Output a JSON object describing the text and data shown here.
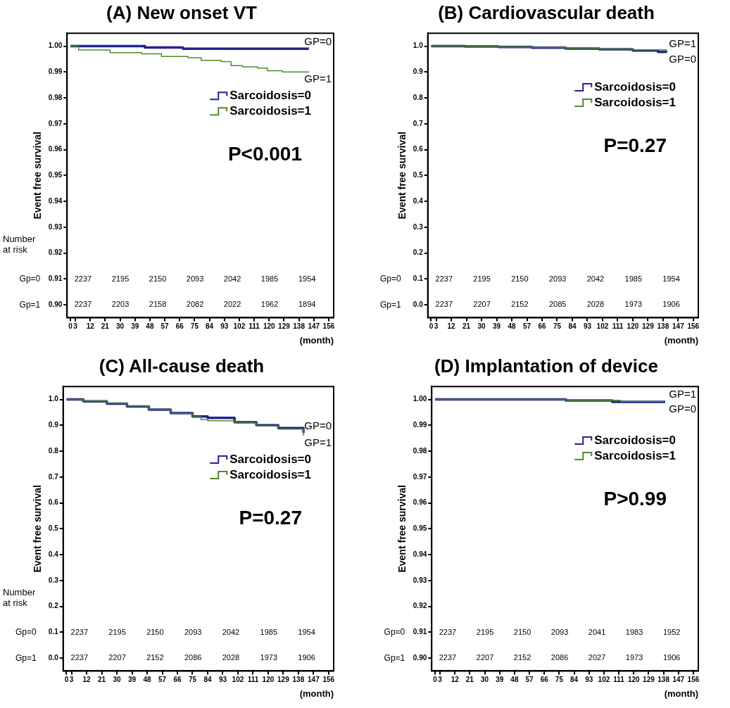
{
  "chart_data": [
    {
      "type": "step",
      "title": "(A) New onset VT",
      "xlabel": "(month)",
      "ylabel": "Event free survival",
      "legend": "top right",
      "xlim": [
        -2,
        159
      ],
      "xticks": [
        0,
        3,
        12,
        21,
        30,
        39,
        48,
        57,
        66,
        75,
        84,
        93,
        102,
        111,
        120,
        129,
        138,
        147,
        156
      ],
      "ylim": [
        0.895,
        1.005
      ],
      "yticks": [
        {
          "value": 0.9,
          "label": "0.90"
        },
        0.91,
        0.92,
        0.93,
        0.94,
        0.95,
        0.96,
        0.97,
        0.98,
        0.99,
        {
          "value": 1,
          "label": "1.00"
        }
      ],
      "series": [
        {
          "name": "Sarcoidosis=0",
          "color": "#23238f",
          "x": [
            0,
            45,
            68,
            144
          ],
          "values": [
            1.0,
            0.9995,
            0.999,
            0.999
          ]
        },
        {
          "name": "Sarcoidosis=1",
          "color": "#4a8c2a",
          "x": [
            0,
            5,
            24,
            43,
            55,
            71,
            79,
            91,
            97,
            104,
            113,
            119,
            128,
            144
          ],
          "values": [
            1.0,
            0.9985,
            0.9975,
            0.997,
            0.996,
            0.9955,
            0.9945,
            0.994,
            0.9925,
            0.992,
            0.9915,
            0.9905,
            0.99,
            0.99
          ]
        }
      ],
      "annotations": [
        "P<0.001",
        "GP=0",
        "GP=1",
        "Number at risk",
        "Gp=0",
        "Gp=1",
        "2237",
        "2195",
        "2150",
        "2093",
        "2042",
        "1985",
        "1954",
        "2237",
        "2203",
        "2158",
        "2082",
        "2022",
        "1962",
        "1894"
      ]
    },
    {
      "type": "step",
      "title": "(B) Cardiovascular death",
      "xlabel": "(month)",
      "ylabel": "Event free survival",
      "legend": "top right",
      "xlim": [
        -2,
        159
      ],
      "xticks": [
        0,
        3,
        12,
        21,
        30,
        39,
        48,
        57,
        66,
        75,
        84,
        93,
        102,
        111,
        120,
        129,
        138,
        147,
        156
      ],
      "ylim": [
        -0.05,
        1.05
      ],
      "yticks": [
        {
          "value": 0,
          "label": "0.0"
        },
        0.1,
        0.2,
        0.3,
        0.4,
        0.5,
        0.6,
        0.7,
        0.8,
        0.9,
        {
          "value": 1,
          "label": "1.0"
        }
      ],
      "series": [
        {
          "name": "Sarcoidosis=0",
          "color": "#23238f",
          "x": [
            0,
            20,
            40,
            60,
            80,
            100,
            120,
            135,
            140
          ],
          "values": [
            1.0,
            0.999,
            0.997,
            0.994,
            0.991,
            0.988,
            0.983,
            0.978,
            0.976
          ]
        },
        {
          "name": "Sarcoidosis=1",
          "color": "#4a8c2a",
          "x": [
            0,
            20,
            40,
            60,
            80,
            100,
            120,
            140
          ],
          "values": [
            1.0,
            0.999,
            0.997,
            0.995,
            0.992,
            0.989,
            0.986,
            0.982
          ]
        }
      ],
      "annotations": [
        "P=0.27",
        "GP=1",
        "GP=0",
        "Gp=0",
        "Gp=1",
        "2237",
        "2195",
        "2150",
        "2093",
        "2042",
        "1985",
        "1954",
        "2237",
        "2207",
        "2152",
        "2085",
        "2028",
        "1973",
        "1906"
      ]
    },
    {
      "type": "step",
      "title": "(C) All-cause death",
      "xlabel": "(month)",
      "ylabel": "Event free survival",
      "legend": "top right",
      "xlim": [
        -2,
        159
      ],
      "xticks": [
        0,
        3,
        12,
        21,
        30,
        39,
        48,
        57,
        66,
        75,
        84,
        93,
        102,
        111,
        120,
        129,
        138,
        147,
        156
      ],
      "ylim": [
        -0.05,
        1.05
      ],
      "yticks": [
        {
          "value": 0,
          "label": "0.0"
        },
        0.1,
        0.2,
        0.3,
        0.4,
        0.5,
        0.6,
        0.7,
        0.8,
        0.9,
        {
          "value": 1,
          "label": "1.0"
        }
      ],
      "series": [
        {
          "name": "Sarcoidosis=0",
          "color": "#23238f",
          "x": [
            0,
            10,
            24,
            36,
            49,
            62,
            75,
            84,
            100,
            113,
            126,
            141
          ],
          "values": [
            1.0,
            0.993,
            0.984,
            0.973,
            0.961,
            0.947,
            0.934,
            0.929,
            0.912,
            0.9,
            0.889,
            0.871
          ]
        },
        {
          "name": "Sarcoidosis=1",
          "color": "#4a8c2a",
          "x": [
            0,
            10,
            24,
            36,
            49,
            62,
            75,
            80,
            84,
            90,
            100,
            113,
            126,
            141
          ],
          "values": [
            1.0,
            0.994,
            0.986,
            0.975,
            0.962,
            0.946,
            0.932,
            0.922,
            0.918,
            0.917,
            0.91,
            0.898,
            0.885,
            0.86
          ]
        }
      ],
      "annotations": [
        "P=0.27",
        "GP=0",
        "GP=1",
        "Number at risk",
        "Gp=0",
        "Gp=1",
        "2237",
        "2195",
        "2150",
        "2093",
        "2042",
        "1985",
        "1954",
        "2237",
        "2207",
        "2152",
        "2086",
        "2028",
        "1973",
        "1906"
      ]
    },
    {
      "type": "step",
      "title": "(D) Implantation of device",
      "xlabel": "(month)",
      "ylabel": "Event free survival",
      "legend": "top right",
      "xlim": [
        -2,
        159
      ],
      "xticks": [
        0,
        3,
        12,
        21,
        30,
        39,
        48,
        57,
        66,
        75,
        84,
        93,
        102,
        111,
        120,
        129,
        138,
        147,
        156
      ],
      "ylim": [
        0.895,
        1.005
      ],
      "yticks": [
        {
          "value": 0.9,
          "label": "0.90"
        },
        0.91,
        0.92,
        0.93,
        0.94,
        0.95,
        0.96,
        0.97,
        0.98,
        0.99,
        {
          "value": 1,
          "label": "1.00"
        }
      ],
      "series": [
        {
          "name": "Sarcoidosis=0",
          "color": "#23238f",
          "x": [
            0,
            79,
            107,
            139
          ],
          "values": [
            1.0,
            0.9996,
            0.9991,
            0.9991
          ]
        },
        {
          "name": "Sarcoidosis=1",
          "color": "#4a8c2a",
          "x": [
            0,
            79,
            112,
            139
          ],
          "values": [
            1.0,
            0.9997,
            0.9993,
            0.9993
          ]
        }
      ],
      "annotations": [
        "P>0.99",
        "GP=1",
        "GP=0",
        "Gp=0",
        "Gp=1",
        "2237",
        "2195",
        "2150",
        "2093",
        "2041",
        "1983",
        "1952",
        "2237",
        "2207",
        "2152",
        "2086",
        "2027",
        "1973",
        "1906"
      ]
    }
  ]
}
